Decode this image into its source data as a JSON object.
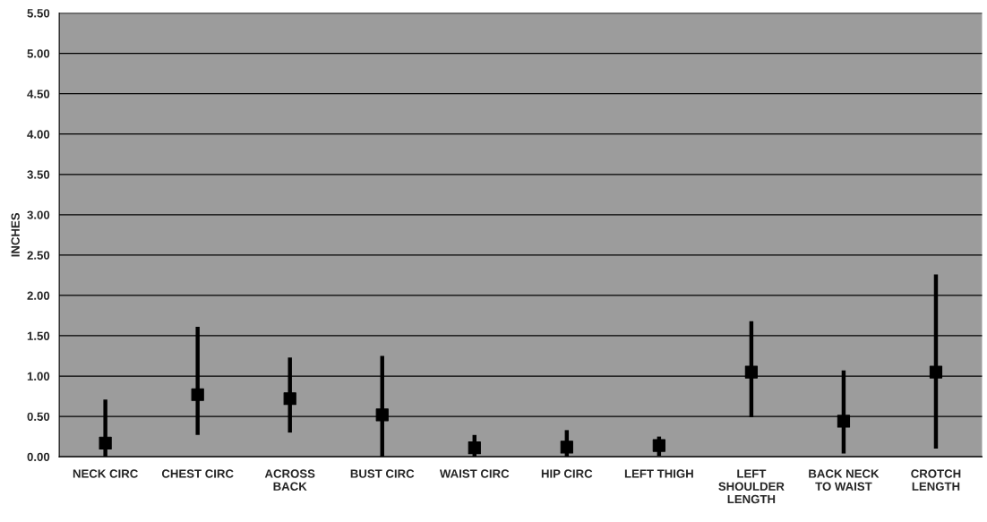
{
  "chart_data": {
    "type": "scatter",
    "ylabel": "INCHES",
    "categories": [
      "NECK CIRC",
      "CHEST CIRC",
      "ACROSS\nBACK",
      "BUST CIRC",
      "WAIST CIRC",
      "HIP CIRC",
      "LEFT THIGH",
      "LEFT\nSHOULDER\nLENGTH",
      "BACK NECK\nTO WAIST",
      "CROTCH\nLENGTH"
    ],
    "series": [
      {
        "color": "#000000",
        "values": [
          0.17,
          0.77,
          0.72,
          0.52,
          0.11,
          0.12,
          0.14,
          1.05,
          0.44,
          1.05
        ],
        "errors": [
          [
            0.0,
            0.71
          ],
          [
            0.27,
            1.61
          ],
          [
            0.3,
            1.23
          ],
          [
            0.0,
            1.25
          ],
          [
            0.0,
            0.27
          ],
          [
            0.0,
            0.33
          ],
          [
            0.01,
            0.25
          ],
          [
            0.49,
            1.68
          ],
          [
            0.04,
            1.07
          ],
          [
            0.1,
            2.26
          ]
        ]
      }
    ],
    "ylim": [
      0,
      5.5
    ],
    "yticks": [
      {
        "value": 0,
        "label": "0.00"
      },
      {
        "value": 0.5,
        "label": "0.50"
      },
      {
        "value": 1,
        "label": "1.00"
      },
      {
        "value": 1.5,
        "label": "1.50"
      },
      {
        "value": 2,
        "label": "2.00"
      },
      {
        "value": 2.5,
        "label": "2.50"
      },
      {
        "value": 3,
        "label": "3.00"
      },
      {
        "value": 3.5,
        "label": "3.50"
      },
      {
        "value": 4,
        "label": "4.00"
      },
      {
        "value": 4.5,
        "label": "4.50"
      },
      {
        "value": 5,
        "label": "5.00"
      },
      {
        "value": 5.5,
        "label": "5.50"
      }
    ],
    "grid": "y",
    "marker": "square",
    "legend": false
  }
}
